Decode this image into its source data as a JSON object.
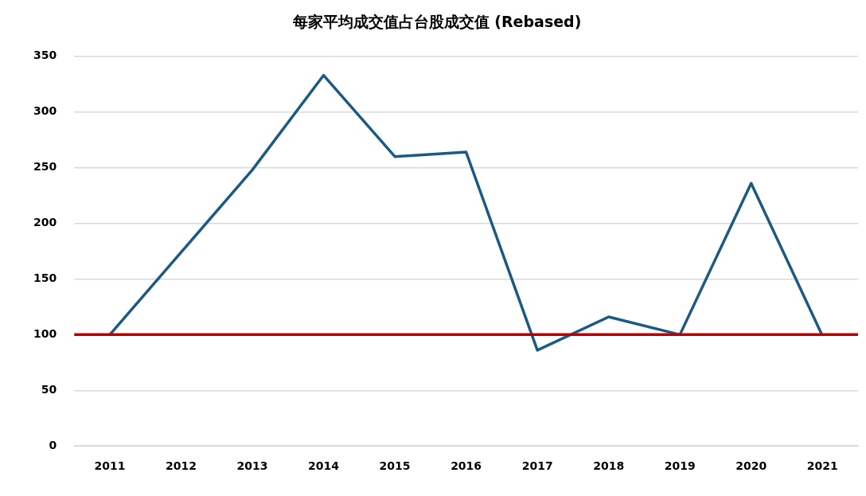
{
  "chart_data": {
    "type": "line",
    "title": "每家平均成交值占台股成交值 (Rebased)",
    "categories": [
      "2011",
      "2012",
      "2013",
      "2014",
      "2015",
      "2016",
      "2017",
      "2018",
      "2019",
      "2020",
      "2021"
    ],
    "series": [
      {
        "color": "#1a5a85",
        "values": [
          100,
          174,
          248,
          333,
          260,
          264,
          86,
          116,
          100,
          236,
          99
        ]
      }
    ],
    "ylim": [
      0,
      350
    ],
    "yticks": [
      0,
      50,
      100,
      150,
      200,
      250,
      300,
      350
    ],
    "grid": "y",
    "legend": false,
    "marker": "none",
    "line_style": "solid",
    "ref_lines": [
      {
        "axis": "y",
        "value": 100,
        "color": "#c00000",
        "line_style": "solid"
      }
    ]
  }
}
